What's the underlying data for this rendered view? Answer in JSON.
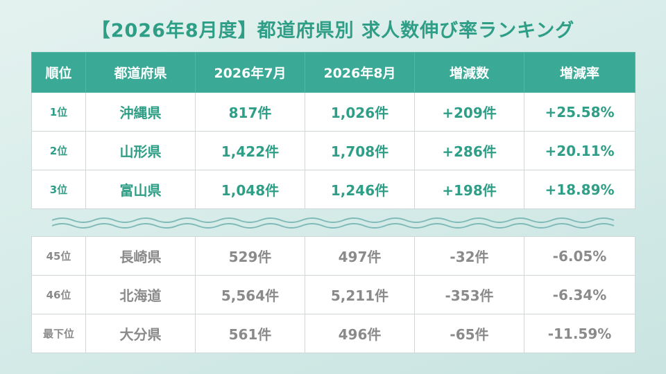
{
  "title": "【2026年8月度】都道府県別 求人数伸び率ランキング",
  "headers": [
    "順位",
    "都道府県",
    "2026年7月",
    "2026年8月",
    "増減数",
    "増減率"
  ],
  "top_rows": [
    {
      "rank": "1位",
      "pref": "沖縄県",
      "jul": "817件",
      "aug": "1,026件",
      "diff": "+209件",
      "rate": "+25.58%"
    },
    {
      "rank": "2位",
      "pref": "山形県",
      "jul": "1,422件",
      "aug": "1,708件",
      "diff": "+286件",
      "rate": "+20.11%"
    },
    {
      "rank": "3位",
      "pref": "富山県",
      "jul": "1,048件",
      "aug": "1,246件",
      "diff": "+198件",
      "rate": "+18.89%"
    }
  ],
  "bottom_rows": [
    {
      "rank": "45位",
      "pref": "長崎県",
      "jul": "529件",
      "aug": "497件",
      "diff": "-32件",
      "rate": "-6.05%"
    },
    {
      "rank": "46位",
      "pref": "北海道",
      "jul": "5,564件",
      "aug": "5,211件",
      "diff": "-353件",
      "rate": "-6.34%"
    },
    {
      "rank": "最下位",
      "pref": "大分県",
      "jul": "561件",
      "aug": "496件",
      "diff": "-65件",
      "rate": "-11.59%"
    }
  ],
  "colors": {
    "accent": "#3aa996",
    "accent_text": "#2e9e86",
    "muted_text": "#8a8a8a"
  }
}
